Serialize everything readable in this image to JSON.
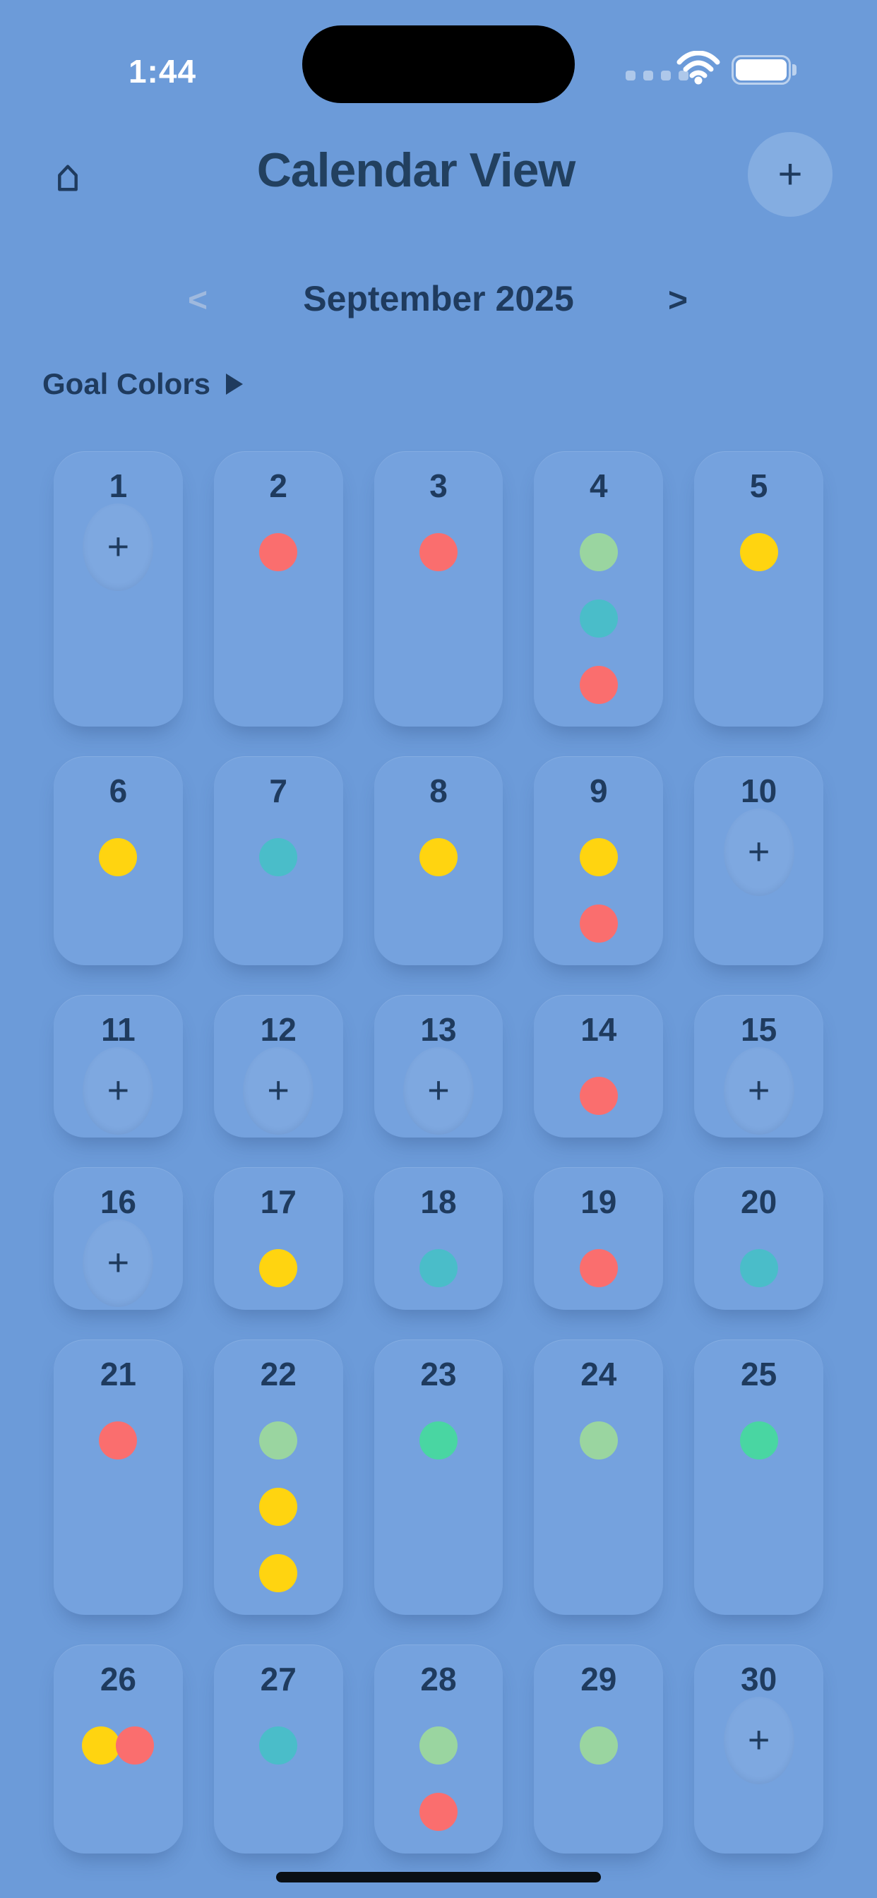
{
  "status_bar": {
    "time": "1:44",
    "wifi_icon": "wifi-icon",
    "battery_icon": "battery-full-icon",
    "signal_icon": "cellular-dots-icon"
  },
  "header": {
    "title": "Calendar View",
    "home_icon": "home-icon",
    "add_button_label": "+"
  },
  "month_nav": {
    "prev_label": "<",
    "label": "September 2025",
    "next_label": ">"
  },
  "goal_colors": {
    "label": "Goal Colors",
    "arrow_icon": "expand-arrow-icon"
  },
  "colors": {
    "background": "#6C9BD9",
    "cell": "#75A2DE",
    "navy_text": "#1F3B5E",
    "red": "#FA6E6E",
    "yellow": "#FFD410",
    "teal": "#4ABDC9",
    "green_light": "#9AD5A0",
    "green_mint": "#49D6A2"
  },
  "calendar": {
    "plus_label": "+",
    "days": [
      {
        "day": "1",
        "plus": true,
        "dots": []
      },
      {
        "day": "2",
        "plus": false,
        "dots": [
          "red"
        ]
      },
      {
        "day": "3",
        "plus": false,
        "dots": [
          "red"
        ]
      },
      {
        "day": "4",
        "plus": false,
        "dots": [
          "green_light",
          "teal",
          "red"
        ]
      },
      {
        "day": "5",
        "plus": false,
        "dots": [
          "yellow"
        ]
      },
      {
        "day": "6",
        "plus": false,
        "dots": [
          "yellow"
        ]
      },
      {
        "day": "7",
        "plus": false,
        "dots": [
          "teal"
        ]
      },
      {
        "day": "8",
        "plus": false,
        "dots": [
          "yellow"
        ]
      },
      {
        "day": "9",
        "plus": false,
        "dots": [
          "yellow",
          "red"
        ]
      },
      {
        "day": "10",
        "plus": true,
        "dots": []
      },
      {
        "day": "11",
        "plus": true,
        "dots": []
      },
      {
        "day": "12",
        "plus": true,
        "dots": []
      },
      {
        "day": "13",
        "plus": true,
        "dots": []
      },
      {
        "day": "14",
        "plus": false,
        "dots": [
          "red"
        ]
      },
      {
        "day": "15",
        "plus": true,
        "dots": []
      },
      {
        "day": "16",
        "plus": true,
        "dots": []
      },
      {
        "day": "17",
        "plus": false,
        "dots": [
          "yellow"
        ]
      },
      {
        "day": "18",
        "plus": false,
        "dots": [
          "teal"
        ]
      },
      {
        "day": "19",
        "plus": false,
        "dots": [
          "red"
        ]
      },
      {
        "day": "20",
        "plus": false,
        "dots": [
          "teal"
        ]
      },
      {
        "day": "21",
        "plus": false,
        "dots": [
          "red"
        ]
      },
      {
        "day": "22",
        "plus": false,
        "dots": [
          "green_light",
          "yellow",
          "yellow"
        ]
      },
      {
        "day": "23",
        "plus": false,
        "dots": [
          "green_mint"
        ]
      },
      {
        "day": "24",
        "plus": false,
        "dots": [
          "green_light"
        ]
      },
      {
        "day": "25",
        "plus": false,
        "dots": [
          "green_mint"
        ]
      },
      {
        "day": "26",
        "plus": false,
        "dots": [
          "yellow",
          "red"
        ],
        "layout": "row"
      },
      {
        "day": "27",
        "plus": false,
        "dots": [
          "teal"
        ]
      },
      {
        "day": "28",
        "plus": false,
        "dots": [
          "green_light",
          "red"
        ]
      },
      {
        "day": "29",
        "plus": false,
        "dots": [
          "green_light"
        ]
      },
      {
        "day": "30",
        "plus": true,
        "dots": []
      }
    ]
  }
}
